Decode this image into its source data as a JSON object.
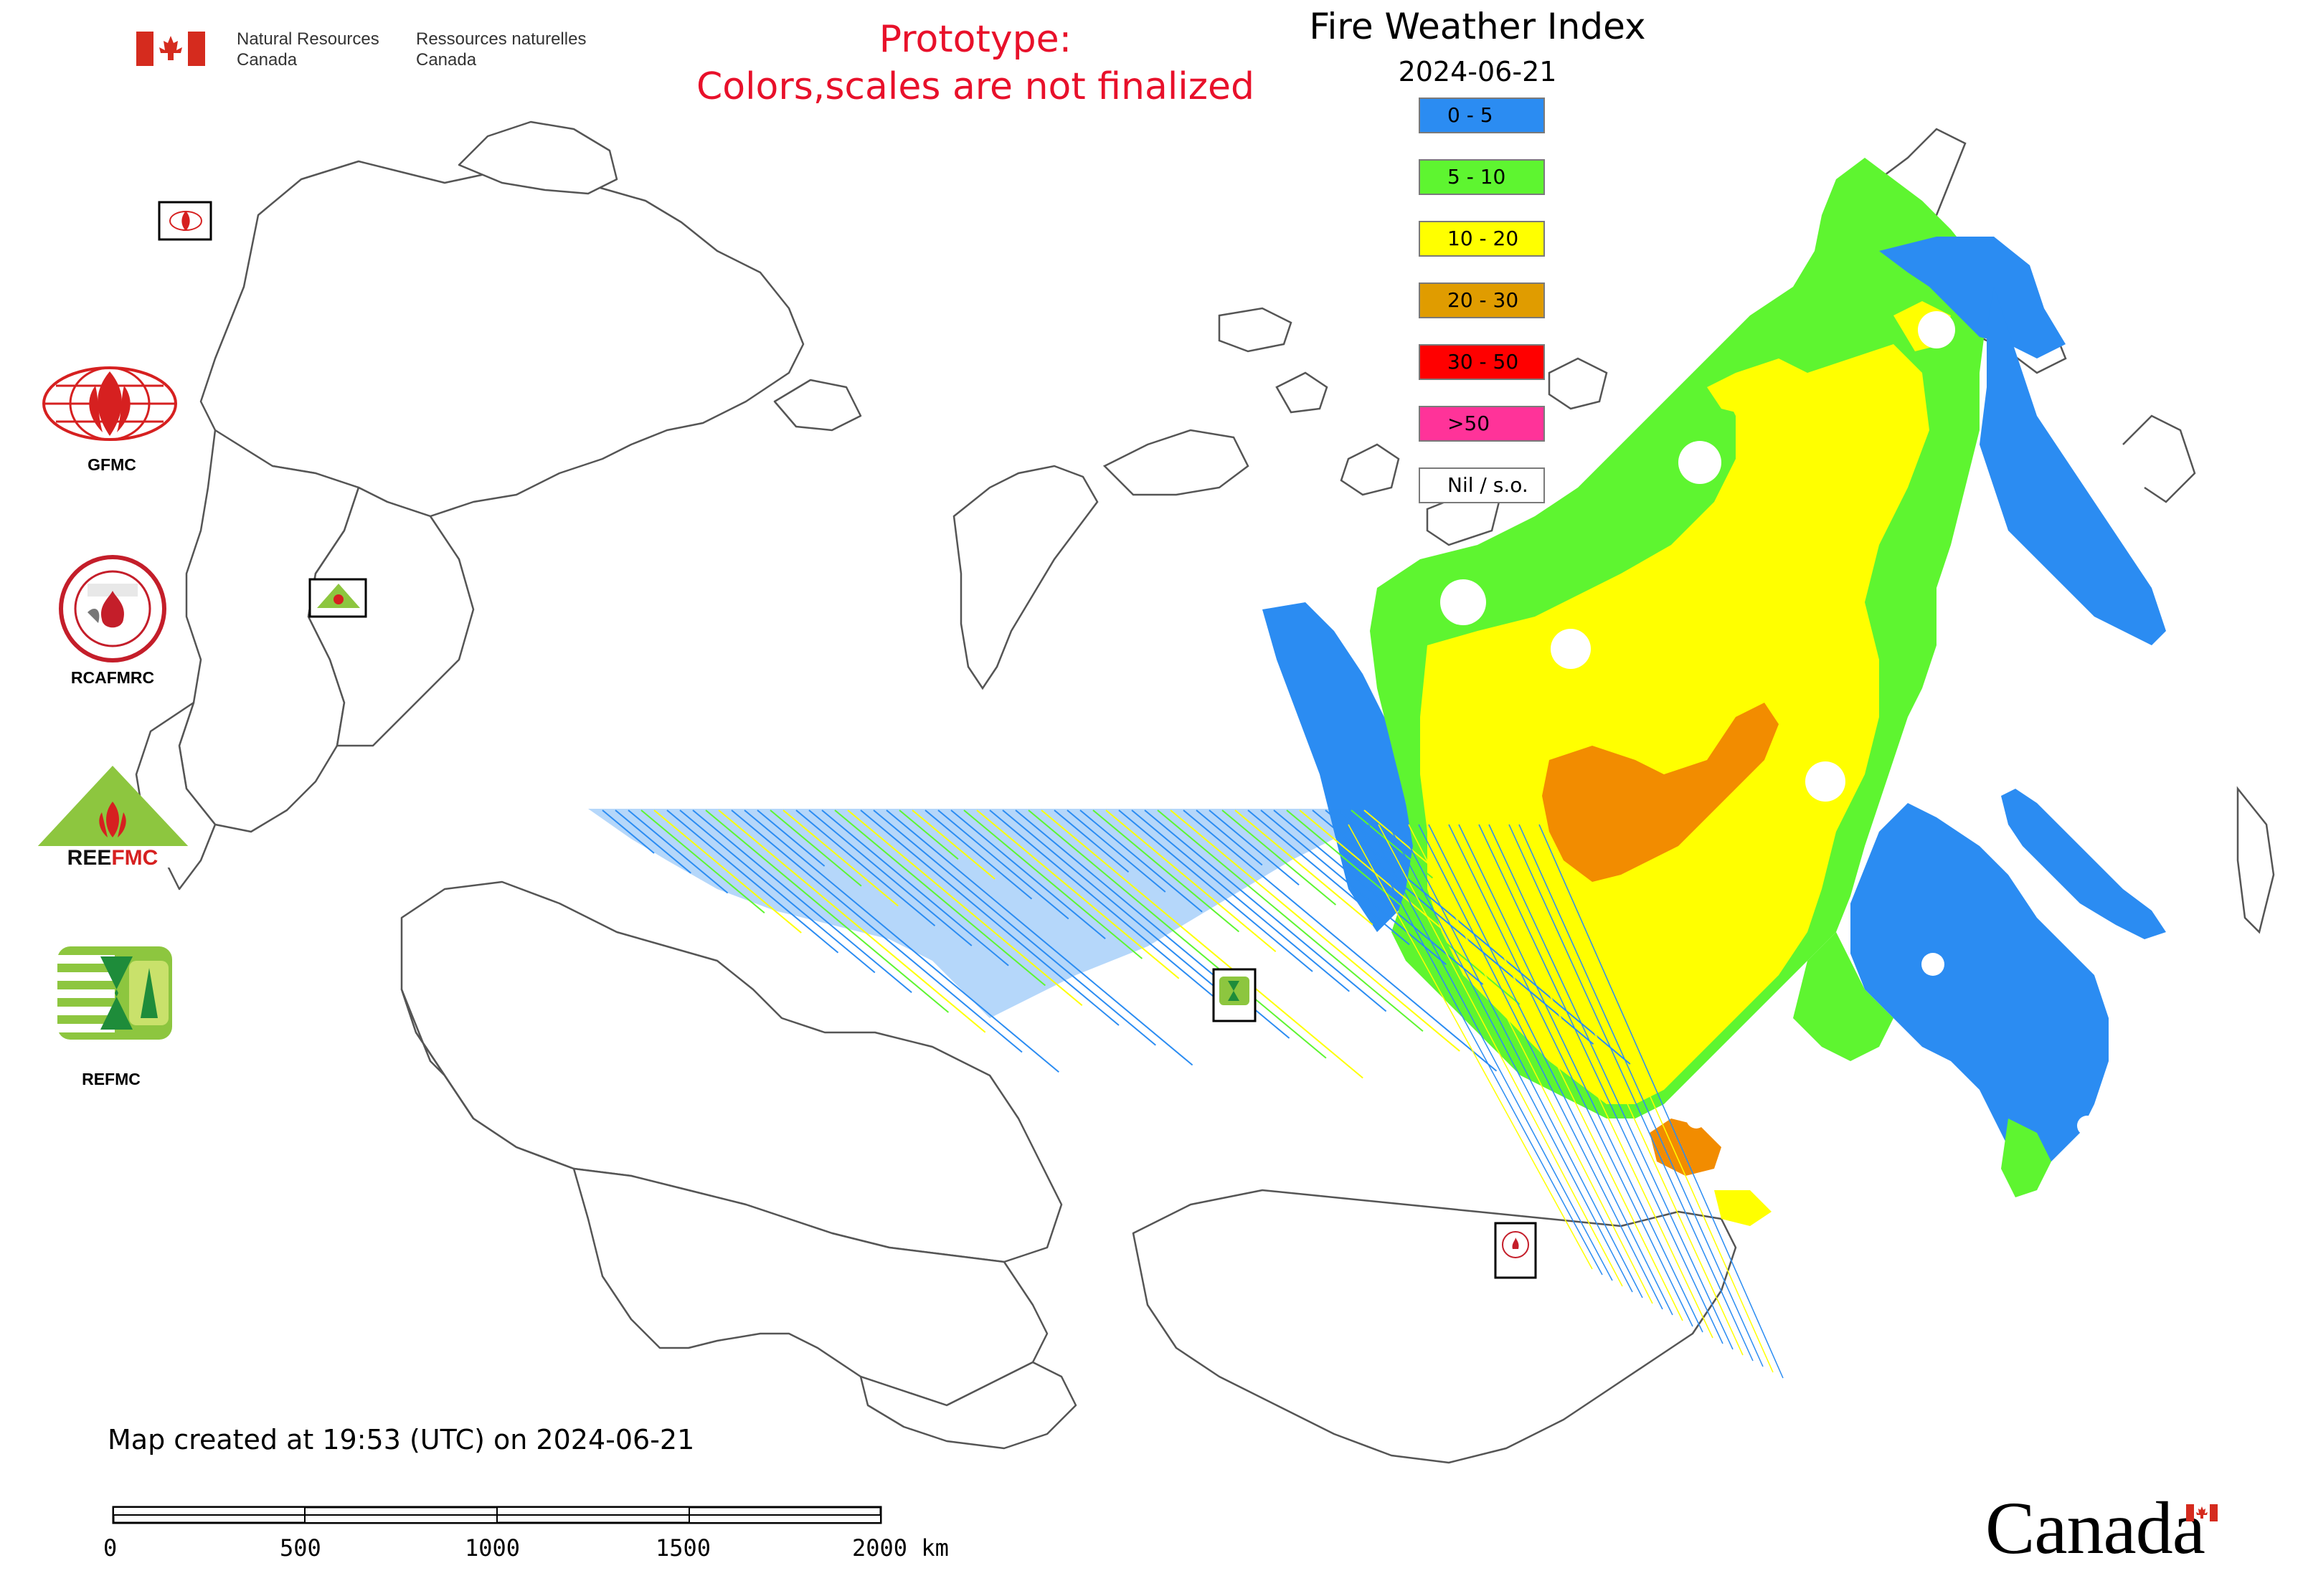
{
  "header": {
    "org_en": [
      "Natural Resources",
      "Canada"
    ],
    "org_fr": [
      "Ressources naturelles",
      "Canada"
    ],
    "prototype_notice": [
      "Prototype:",
      "Colors,scales are not finalized"
    ]
  },
  "legend": {
    "title": "Fire Weather Index",
    "date": "2024-06-21",
    "classes": [
      {
        "label": "0 - 5",
        "color": "#2b8cf2"
      },
      {
        "label": "5 - 10",
        "color": "#5ef530"
      },
      {
        "label": "10 - 20",
        "color": "#ffff00"
      },
      {
        "label": "20 - 30",
        "color": "#e09c00"
      },
      {
        "label": "30 - 50",
        "color": "#ff0000"
      },
      {
        "label": ">50",
        "color": "#ff3399"
      },
      {
        "label": "Nil / s.o.",
        "color": "#ffffff"
      }
    ]
  },
  "logos": [
    {
      "name": "GFMC",
      "icon": "gfmc-globe-flame-icon"
    },
    {
      "name": "RCAFMRC",
      "icon": "rcafmrc-seal-icon"
    },
    {
      "name": "REEFMC",
      "icon": "reefmc-triangle-icon"
    },
    {
      "name": "REFMC",
      "icon": "refmc-sigma-icon"
    }
  ],
  "map": {
    "station_markers": [
      "GFMC",
      "REEFMC",
      "REFMC",
      "RCAFMRC"
    ]
  },
  "footer": {
    "created_text": "Map created at 19:53 (UTC) on 2024-06-21",
    "scale_labels": [
      "0",
      "500",
      "1000",
      "1500",
      "2000 km"
    ],
    "wordmark": "Canada"
  },
  "colors": {
    "prototype_red": "#e8102a",
    "border_gray": "#555555"
  }
}
